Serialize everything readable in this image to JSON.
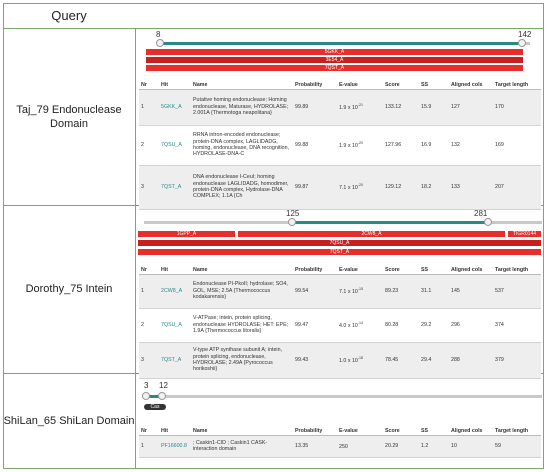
{
  "header": {
    "query": "Query"
  },
  "columns": {
    "nr": "Nr",
    "hit": "Hit",
    "name": "Name",
    "probability": "Probability",
    "evalue": "E-value",
    "score": "Score",
    "ss": "SS",
    "aligned_cols": "Aligned cols",
    "target_length": "Target length"
  },
  "colors": {
    "border": "#7aa96b",
    "accent_teal": "#2a8a82",
    "hit_red": "#e82d2d",
    "link": "#2a8a8a"
  },
  "rows": [
    {
      "query": "Taj_79 Endonuclease Domain",
      "range_start": "8",
      "range_end": "142",
      "bars": [
        "5GKK_A",
        "3E54_A",
        "7QST_A"
      ],
      "hits": [
        {
          "nr": "1",
          "hit": "5GKK_A",
          "name": "Putative homing endonuclease; Homing endonuclease, Maturase, HYDROLASE; 2.001A {Thermotoga neapolitana}",
          "probability": "99.89",
          "evalue_base": "1.9 x 10",
          "evalue_exp": "-21",
          "score": "133.12",
          "ss": "15.9",
          "aligned_cols": "127",
          "target_length": "170"
        },
        {
          "nr": "2",
          "hit": "7QSU_A",
          "name": "RRNA intron-encoded endonuclease; protein-DNA complex, LAGLIDADG, homing, endonuclease, DNA recognition, HYDROLASE-DNA-C",
          "probability": "99.88",
          "evalue_base": "1.9 x 10",
          "evalue_exp": "-20",
          "score": "127.96",
          "ss": "16.9",
          "aligned_cols": "132",
          "target_length": "169"
        },
        {
          "nr": "3",
          "hit": "7QST_A",
          "name": "DNA endonuclease I-CeuI; homing endonuclease LAGLIDADG, homodimer, protein-DNA complex, Hydrolase-DNA COMPLEX; 1.1A {Ch",
          "probability": "99.87",
          "evalue_base": "7.1 x 10",
          "evalue_exp": "-20",
          "score": "129.12",
          "ss": "18.2",
          "aligned_cols": "133",
          "target_length": "207"
        }
      ]
    },
    {
      "query": "Dorothy_75 Intein",
      "range_start": "125",
      "range_end": "281",
      "bars": [
        "1GPP_A",
        "2CW8_A",
        "TIGR0144",
        "7QSU_A",
        "7QST_A"
      ],
      "hits": [
        {
          "nr": "1",
          "hit": "2CW8_A",
          "name": "Endonuclease PI-PkoII; hydrolase; SO4, GOL, MSE; 2.5A {Thermococcus kodakarensis}",
          "probability": "99.54",
          "evalue_base": "7.1 x 10",
          "evalue_exp": "-15",
          "score": "89.23",
          "ss": "31.1",
          "aligned_cols": "145",
          "target_length": "537"
        },
        {
          "nr": "2",
          "hit": "7QSU_A",
          "name": "V-ATPase; intein, protein splicing, endonuclease HYDROLASE; HET: EPE; 1.9A {Thermococcus litoralis}",
          "probability": "99.47",
          "evalue_base": "4.0 x 10",
          "evalue_exp": "-14",
          "score": "80.28",
          "ss": "29.2",
          "aligned_cols": "296",
          "target_length": "374"
        },
        {
          "nr": "3",
          "hit": "7QST_A",
          "name": "V-type ATP synthase subunit A; intein, protein splicing, endonuclease, HYDROLASE; 2.49A {Pyrococcus horikoshii}",
          "probability": "99.43",
          "evalue_base": "1.0 x 10",
          "evalue_exp": "-18",
          "score": "78.45",
          "ss": "29.4",
          "aligned_cols": "288",
          "target_length": "379"
        }
      ]
    },
    {
      "query": "ShiLan_65 ShiLan Domain",
      "range_start": "3",
      "range_end": "12",
      "bars": [
        "Cas"
      ],
      "hits": [
        {
          "nr": "1",
          "hit": "PF16600.8",
          "name": "; Caskin1-CID ; Caskin1 CASK-interaction domain",
          "probability": "13.35",
          "evalue_base": "250",
          "evalue_exp": "",
          "score": "20.29",
          "ss": "1.2",
          "aligned_cols": "10",
          "target_length": "59"
        }
      ]
    }
  ]
}
